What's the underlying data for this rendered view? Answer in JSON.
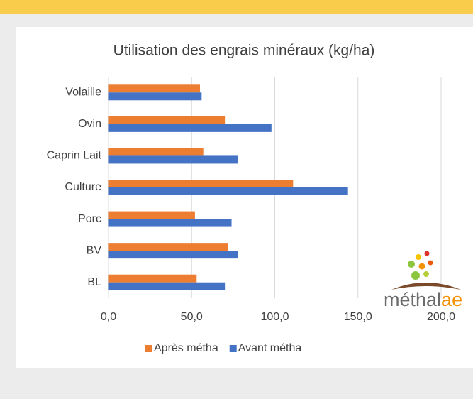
{
  "chart_data": {
    "type": "bar",
    "orientation": "horizontal",
    "title": "Utilisation des engrais minéraux (kg/ha)",
    "categories": [
      "Volaille",
      "Ovin",
      "Caprin Lait",
      "Culture",
      "Porc",
      "BV",
      "BL"
    ],
    "series": [
      {
        "name": "Après métha",
        "color": "#ed7d31",
        "values": [
          55,
          70,
          57,
          111,
          52,
          72,
          53
        ]
      },
      {
        "name": "Avant métha",
        "color": "#4472c4",
        "values": [
          56,
          98,
          78,
          144,
          74,
          78,
          70
        ]
      }
    ],
    "xlim": [
      0,
      200
    ],
    "xticks": [
      {
        "value": 0,
        "label": "0,0"
      },
      {
        "value": 50,
        "label": "50,0"
      },
      {
        "value": 100,
        "label": "100,0"
      },
      {
        "value": 150,
        "label": "150,0"
      },
      {
        "value": 200,
        "label": "200,0"
      }
    ],
    "grid": true,
    "legend": "bottom"
  },
  "logo": {
    "parts": [
      "méthal",
      "ae"
    ]
  }
}
